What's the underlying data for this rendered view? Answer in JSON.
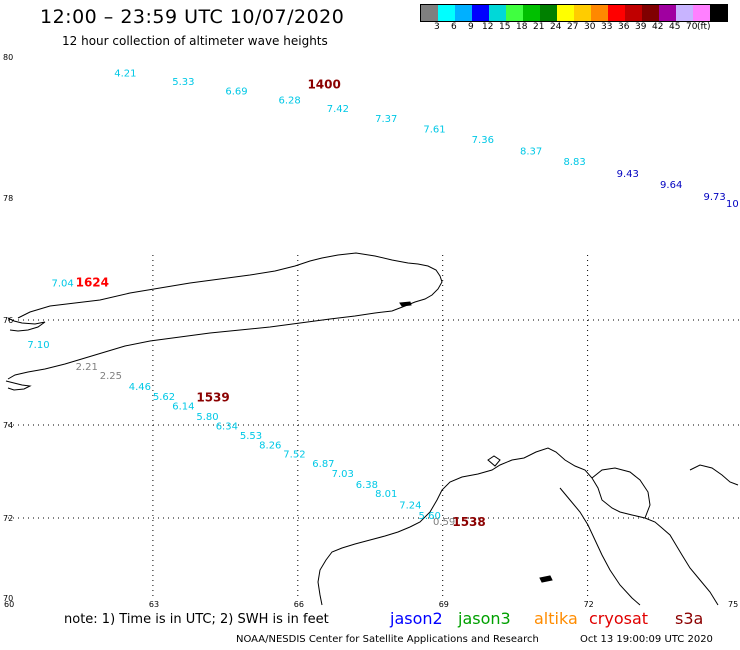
{
  "title": "12:00 – 23:59 UTC 10/07/2020",
  "subtitle": "12 hour collection of altimeter wave heights",
  "legend": {
    "colors": [
      "#7f7f7f",
      "#00ffff",
      "#00b0ff",
      "#0000ff",
      "#00d8d8",
      "#40ff40",
      "#00c000",
      "#008000",
      "#ffff00",
      "#ffcc00",
      "#ff8800",
      "#ff0000",
      "#c00000",
      "#800000",
      "#a000a0",
      "#c8b4ff",
      "#ff80ff",
      "#000000"
    ],
    "labels": [
      "3",
      "6",
      "9",
      "12",
      "15",
      "18",
      "21",
      "24",
      "27",
      "30",
      "33",
      "36",
      "39",
      "42",
      "45",
      "70",
      "(ft)"
    ]
  },
  "axes": {
    "lat_labels": [
      {
        "text": "80",
        "lat": 80
      },
      {
        "text": "78",
        "lat": 78
      },
      {
        "text": "76",
        "lat": 76
      },
      {
        "text": "74",
        "lat": 74
      },
      {
        "text": "72",
        "lat": 72
      },
      {
        "text": "70",
        "lat": 70
      }
    ],
    "lon_labels": [
      {
        "text": "60",
        "lon": 60
      },
      {
        "text": "63",
        "lon": 63
      },
      {
        "text": "66",
        "lon": 66
      },
      {
        "text": "69",
        "lon": 69
      },
      {
        "text": "72",
        "lon": 72
      },
      {
        "text": "75",
        "lon": 75
      }
    ]
  },
  "tracks": [
    {
      "satellite": "jason3",
      "time_label": {
        "text": "1400",
        "color": "#8b0000",
        "lon": 66.2,
        "lat": 79.55
      },
      "points": [
        {
          "v": "4.21",
          "lon": 62.2,
          "lat": 79.72,
          "color": "#00c8e6"
        },
        {
          "v": "5.33",
          "lon": 63.4,
          "lat": 79.6,
          "color": "#00c8e6"
        },
        {
          "v": "6.69",
          "lon": 64.5,
          "lat": 79.47,
          "color": "#00c8e6"
        },
        {
          "v": "6.28",
          "lon": 65.6,
          "lat": 79.34,
          "color": "#00c8e6"
        },
        {
          "v": "7.42",
          "lon": 66.6,
          "lat": 79.22,
          "color": "#00c8e6"
        },
        {
          "v": "7.37",
          "lon": 67.6,
          "lat": 79.08,
          "color": "#00c8e6"
        },
        {
          "v": "7.61",
          "lon": 68.6,
          "lat": 78.93,
          "color": "#00c8e6"
        },
        {
          "v": "7.36",
          "lon": 69.6,
          "lat": 78.78,
          "color": "#00c8e6"
        },
        {
          "v": "8.37",
          "lon": 70.6,
          "lat": 78.62,
          "color": "#00c8e6"
        },
        {
          "v": "8.83",
          "lon": 71.5,
          "lat": 78.47,
          "color": "#00c8e6"
        },
        {
          "v": "9.43",
          "lon": 72.6,
          "lat": 78.3,
          "color": "#0000c0"
        },
        {
          "v": "9.64",
          "lon": 73.5,
          "lat": 78.14,
          "color": "#0000c0"
        },
        {
          "v": "9.73",
          "lon": 74.4,
          "lat": 77.97,
          "color": "#0000c0"
        },
        {
          "v": "10",
          "lon": 75.0,
          "lat": 77.85,
          "color": "#0000c0"
        }
      ]
    },
    {
      "satellite": "cryosat",
      "time_label": {
        "text": "1624",
        "color": "#ff0000",
        "lon": 61.4,
        "lat": 76.55
      },
      "points": [
        {
          "v": "7.04",
          "lon": 60.9,
          "lat": 76.55,
          "color": "#00c8e6"
        }
      ]
    },
    {
      "satellite": "jason3",
      "time_label": {
        "text": "1539",
        "color": "#8b0000",
        "lon": 63.9,
        "lat": 74.45
      },
      "points": [
        {
          "v": "7.10",
          "lon": 60.4,
          "lat": 75.47,
          "color": "#00c8e6"
        },
        {
          "v": "2.21",
          "lon": 61.4,
          "lat": 75.05,
          "color": "#808080"
        },
        {
          "v": "2.25",
          "lon": 61.9,
          "lat": 74.88,
          "color": "#808080"
        },
        {
          "v": "4.46",
          "lon": 62.5,
          "lat": 74.67,
          "color": "#00c8e6"
        },
        {
          "v": "5.62",
          "lon": 63.0,
          "lat": 74.48,
          "color": "#00c8e6"
        },
        {
          "v": "6.14",
          "lon": 63.4,
          "lat": 74.3,
          "color": "#00c8e6"
        },
        {
          "v": "5.80",
          "lon": 63.9,
          "lat": 74.1,
          "color": "#00c8e6"
        },
        {
          "v": "6.34",
          "lon": 64.3,
          "lat": 73.9,
          "color": "#00c8e6"
        },
        {
          "v": "5.53",
          "lon": 64.8,
          "lat": 73.7,
          "color": "#00c8e6"
        },
        {
          "v": "8.26",
          "lon": 65.2,
          "lat": 73.5,
          "color": "#00c8e6"
        },
        {
          "v": "7.52",
          "lon": 65.7,
          "lat": 73.3,
          "color": "#00c8e6"
        },
        {
          "v": "6.87",
          "lon": 66.3,
          "lat": 73.1,
          "color": "#00c8e6"
        },
        {
          "v": "7.03",
          "lon": 66.7,
          "lat": 72.88,
          "color": "#00c8e6"
        },
        {
          "v": "6.38",
          "lon": 67.2,
          "lat": 72.65,
          "color": "#00c8e6"
        },
        {
          "v": "8.01",
          "lon": 67.6,
          "lat": 72.45,
          "color": "#00c8e6"
        },
        {
          "v": "7.24",
          "lon": 68.1,
          "lat": 72.2,
          "color": "#00c8e6"
        },
        {
          "v": "5.60",
          "lon": 68.5,
          "lat": 71.98,
          "color": "#00c8e6"
        },
        {
          "v": "0.59",
          "lon": 68.8,
          "lat": 71.83,
          "color": "#808080"
        }
      ]
    },
    {
      "satellite": "jason3",
      "time_label": {
        "text": "1538",
        "color": "#8b0000",
        "lon": 69.2,
        "lat": 71.8
      },
      "points": []
    }
  ],
  "note": "note: 1) Time is in UTC; 2) SWH is in feet",
  "satellites": [
    {
      "name": "jason2",
      "color": "#0000ff"
    },
    {
      "name": "jason3",
      "color": "#00a000"
    },
    {
      "name": "altika",
      "color": "#ff8c00"
    },
    {
      "name": "cryosat",
      "color": "#e00000"
    },
    {
      "name": "s3a",
      "color": "#8b0000"
    }
  ],
  "credit": "NOAA/NESDIS Center for Satellite Applications and Research",
  "timestamp": "Oct 13 19:00:09 UTC 2020"
}
